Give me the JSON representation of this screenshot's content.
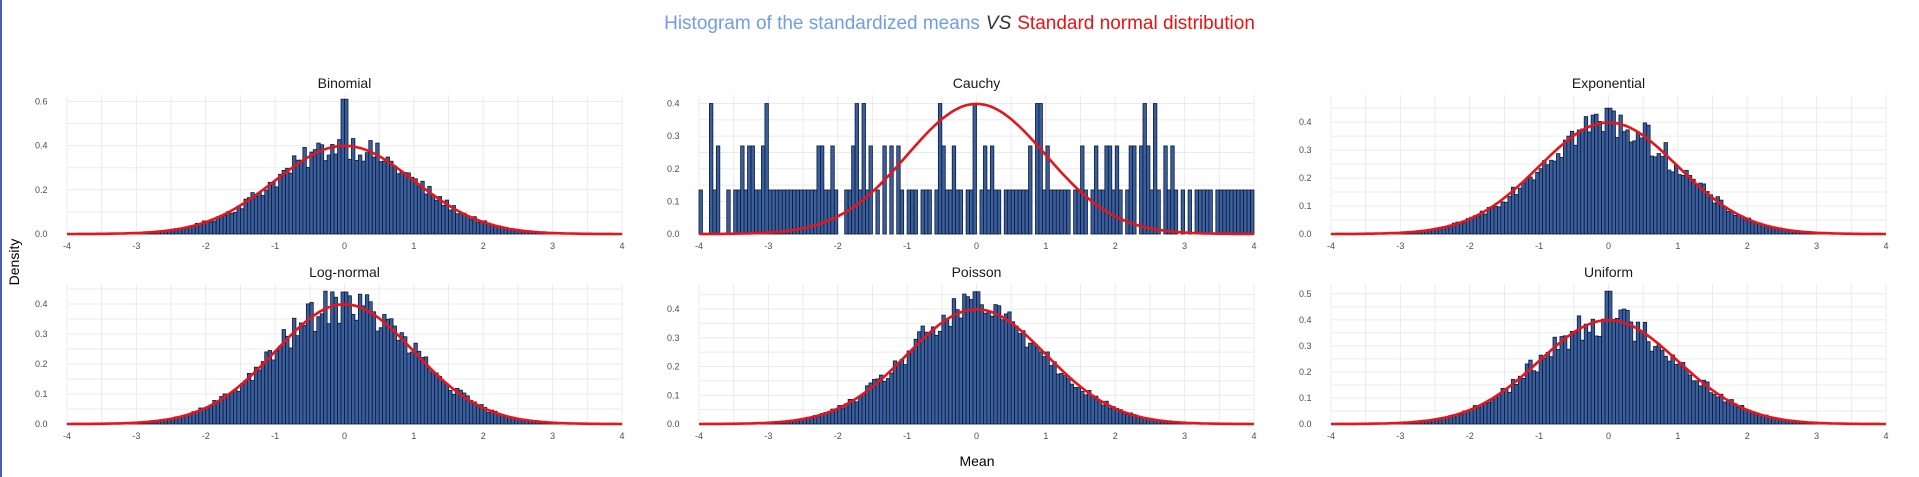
{
  "title": {
    "part1": "Histogram of the standardized means",
    "part2": "VS",
    "part3": "Standard normal distribution",
    "colors": {
      "part1": "#6f9de6",
      "part2": "#333333",
      "part3": "#ee1111"
    }
  },
  "axes": {
    "xlabel": "Mean",
    "ylabel": "Density"
  },
  "chart_data": [
    {
      "type": "bar",
      "title": "Binomial",
      "xlim": [
        -4,
        4
      ],
      "ylim": [
        0,
        0.62
      ],
      "x_ticks": [
        "-4",
        "-3",
        "-2",
        "-1",
        "0",
        "1",
        "2",
        "3",
        "4"
      ],
      "y_ticks": [
        "0.0",
        "0.2",
        "0.4",
        "0.6"
      ],
      "overlay": "standard-normal-density",
      "histogram": {
        "bins": 160,
        "peak": 0.61,
        "shape": "approximately normal",
        "bar_color": "#3a5f9f",
        "line_color": "#e8141c"
      }
    },
    {
      "type": "bar",
      "title": "Cauchy",
      "xlim": [
        -4,
        4
      ],
      "ylim": [
        0,
        0.42
      ],
      "x_ticks": [
        "-4",
        "-3",
        "-2",
        "-1",
        "0",
        "1",
        "2",
        "3",
        "4"
      ],
      "y_ticks": [
        "0.0",
        "0.1",
        "0.2",
        "0.3",
        "0.4"
      ],
      "overlay": "standard-normal-density",
      "histogram": {
        "bins": 160,
        "values_range": [
          0,
          0.4
        ],
        "shape": "scattered, discrete levels 0.13 / 0.27 / 0.4",
        "bar_color": "#3a5f9f",
        "line_color": "#e8141c"
      }
    },
    {
      "type": "bar",
      "title": "Exponential",
      "xlim": [
        -4,
        4
      ],
      "ylim": [
        0,
        0.49
      ],
      "x_ticks": [
        "-4",
        "-3",
        "-2",
        "-1",
        "0",
        "1",
        "2",
        "3",
        "4"
      ],
      "y_ticks": [
        "0.0",
        "0.1",
        "0.2",
        "0.3",
        "0.4"
      ],
      "overlay": "standard-normal-density",
      "histogram": {
        "bins": 160,
        "peak": 0.45,
        "shape": "approximately normal",
        "bar_color": "#3a5f9f",
        "line_color": "#e8141c"
      }
    },
    {
      "type": "bar",
      "title": "Log-normal",
      "xlim": [
        -4,
        4
      ],
      "ylim": [
        0,
        0.46
      ],
      "x_ticks": [
        "-4",
        "-3",
        "-2",
        "-1",
        "0",
        "1",
        "2",
        "3",
        "4"
      ],
      "y_ticks": [
        "0.0",
        "0.1",
        "0.2",
        "0.3",
        "0.4"
      ],
      "overlay": "standard-normal-density",
      "histogram": {
        "bins": 160,
        "peak": 0.44,
        "shape": "approximately normal",
        "bar_color": "#3a5f9f",
        "line_color": "#e8141c"
      }
    },
    {
      "type": "bar",
      "title": "Poisson",
      "xlim": [
        -4,
        4
      ],
      "ylim": [
        0,
        0.48
      ],
      "x_ticks": [
        "-4",
        "-3",
        "-2",
        "-1",
        "0",
        "1",
        "2",
        "3",
        "4"
      ],
      "y_ticks": [
        "0.0",
        "0.1",
        "0.2",
        "0.3",
        "0.4"
      ],
      "overlay": "standard-normal-density",
      "histogram": {
        "bins": 160,
        "peak": 0.46,
        "shape": "approximately normal",
        "bar_color": "#3a5f9f",
        "line_color": "#e8141c"
      }
    },
    {
      "type": "bar",
      "title": "Uniform",
      "xlim": [
        -4,
        4
      ],
      "ylim": [
        0,
        0.53
      ],
      "x_ticks": [
        "-4",
        "-3",
        "-2",
        "-1",
        "0",
        "1",
        "2",
        "3",
        "4"
      ],
      "y_ticks": [
        "0.0",
        "0.1",
        "0.2",
        "0.3",
        "0.4",
        "0.5"
      ],
      "overlay": "standard-normal-density",
      "histogram": {
        "bins": 160,
        "peak": 0.51,
        "shape": "approximately normal",
        "bar_color": "#3a5f9f",
        "line_color": "#e8141c"
      }
    }
  ]
}
